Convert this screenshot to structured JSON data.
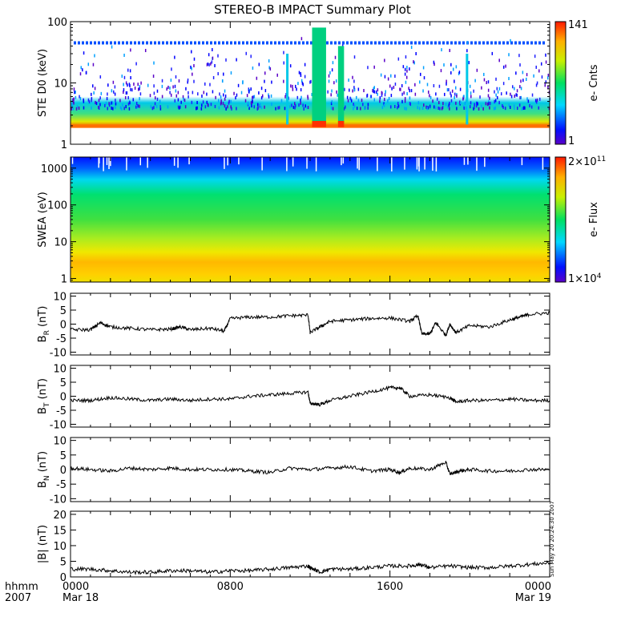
{
  "title": "STEREO-B IMPACT Summary Plot",
  "timestamp": "Sun May 20 20:24:30 2007",
  "x_axis": {
    "label_line1": "hhmm",
    "label_line2": "2007",
    "ticks": [
      {
        "hours": 0,
        "time": "0000",
        "date": "Mar 18"
      },
      {
        "hours": 8,
        "time": "0800",
        "date": ""
      },
      {
        "hours": 16,
        "time": "1600",
        "date": ""
      },
      {
        "hours": 24,
        "time": "0000",
        "date": "Mar 19"
      }
    ]
  },
  "colors": {
    "trace": "#000000",
    "spectrogram_low": "#5a00c8",
    "spectrogram_high": "#ff2000"
  },
  "chart_data": [
    {
      "type": "heatmap",
      "ylabel": "STE D0 (keV)",
      "yscale": "log",
      "ylim": [
        1,
        100
      ],
      "yticks": [
        "1",
        "10",
        "100"
      ],
      "colorbar": {
        "label": "e- Cnts",
        "min": "1",
        "max": "141"
      },
      "xlim_hours": [
        0,
        24
      ]
    },
    {
      "type": "heatmap",
      "ylabel": "SWEA (eV)",
      "yscale": "log",
      "ylim": [
        0.8,
        2000
      ],
      "yticks": [
        "1",
        "10",
        "100",
        "1000"
      ],
      "colorbar": {
        "label": "e- Flux",
        "min_base": "1×10",
        "min_exp": "4",
        "max_base": "2×10",
        "max_exp": "11"
      },
      "xlim_hours": [
        0,
        24
      ]
    },
    {
      "type": "line",
      "ylabel_main": "B",
      "ylabel_sub": "R",
      "ylabel_unit": " (nT)",
      "ylim": [
        -11,
        11
      ],
      "yticks": [
        "-10",
        "-5",
        "0",
        "5",
        "10"
      ],
      "x": [
        0,
        1,
        1.5,
        2,
        3,
        4,
        5,
        5.5,
        6,
        7,
        7.7,
        8,
        9,
        10,
        11,
        11.9,
        12,
        12.5,
        13,
        14,
        15,
        16,
        17,
        17.4,
        17.6,
        18,
        18.3,
        18.8,
        19,
        19.3,
        20,
        21,
        22,
        22.5,
        23,
        24
      ],
      "values": [
        -2,
        -2,
        0.5,
        -1,
        -1.5,
        -2,
        -1.8,
        -1,
        -2,
        -1.5,
        -2.5,
        2,
        2.5,
        2.5,
        3,
        3.2,
        -3,
        -1,
        1,
        1.5,
        2,
        2.2,
        1,
        3,
        -3.5,
        -3.5,
        0.5,
        -4,
        0,
        -3,
        -0.5,
        -1,
        1.5,
        2.5,
        3.5,
        4
      ]
    },
    {
      "type": "line",
      "ylabel_main": "B",
      "ylabel_sub": "T",
      "ylabel_unit": " (nT)",
      "ylim": [
        -11,
        11
      ],
      "yticks": [
        "-10",
        "-5",
        "0",
        "5",
        "10"
      ],
      "x": [
        0,
        1,
        2,
        3,
        4,
        5,
        6,
        7,
        8,
        9,
        10,
        11,
        11.9,
        12,
        12.5,
        13,
        14,
        15,
        16,
        16.5,
        17,
        18,
        19,
        19.3,
        20,
        21,
        22,
        23,
        24
      ],
      "values": [
        -1.5,
        -1.5,
        -0.5,
        -1,
        -1.5,
        -1,
        -1.5,
        -1,
        -1,
        0,
        0.5,
        1,
        1.5,
        -2.5,
        -3,
        -1.5,
        0,
        1.5,
        3,
        3,
        0,
        0.5,
        -0.5,
        -2,
        -1.5,
        -1.5,
        -1,
        -1.5,
        -1.5
      ]
    },
    {
      "type": "line",
      "ylabel_main": "B",
      "ylabel_sub": "N",
      "ylabel_unit": " (nT)",
      "ylim": [
        -11,
        11
      ],
      "yticks": [
        "-10",
        "-5",
        "0",
        "5",
        "10"
      ],
      "x": [
        0,
        1,
        2,
        3,
        4,
        5,
        6,
        7,
        8,
        9,
        10,
        11,
        12,
        13,
        14,
        15,
        16,
        16.5,
        17,
        18,
        18.8,
        19,
        19.5,
        20,
        21,
        22,
        23,
        24
      ],
      "values": [
        0.5,
        0,
        -0.5,
        0.5,
        0,
        0.5,
        0,
        0,
        0,
        -0.5,
        -1,
        0.5,
        0,
        0.5,
        1,
        -0.5,
        0,
        -1,
        0.5,
        0,
        2.5,
        -1.5,
        -0.5,
        0,
        -0.5,
        -0.5,
        0,
        0
      ]
    },
    {
      "type": "line",
      "ylabel_main": "|B|",
      "ylabel_sub": "",
      "ylabel_unit": " (nT)",
      "ylim": [
        0,
        21
      ],
      "yticks": [
        "0",
        "5",
        "10",
        "15",
        "20"
      ],
      "x": [
        0,
        1,
        2,
        3,
        4,
        5,
        6,
        7,
        8,
        9,
        10,
        11,
        11.9,
        12,
        12.5,
        13,
        14,
        15,
        16,
        17,
        17.5,
        18,
        19,
        20,
        21,
        22,
        23,
        24
      ],
      "values": [
        2.5,
        2.5,
        2,
        1.5,
        1.5,
        2,
        2,
        1.5,
        2,
        2,
        2.5,
        3,
        3.5,
        3,
        1.5,
        2.5,
        2.5,
        3,
        3.5,
        3.5,
        4,
        3,
        3.5,
        3,
        3,
        3.5,
        4,
        4.5
      ]
    }
  ]
}
